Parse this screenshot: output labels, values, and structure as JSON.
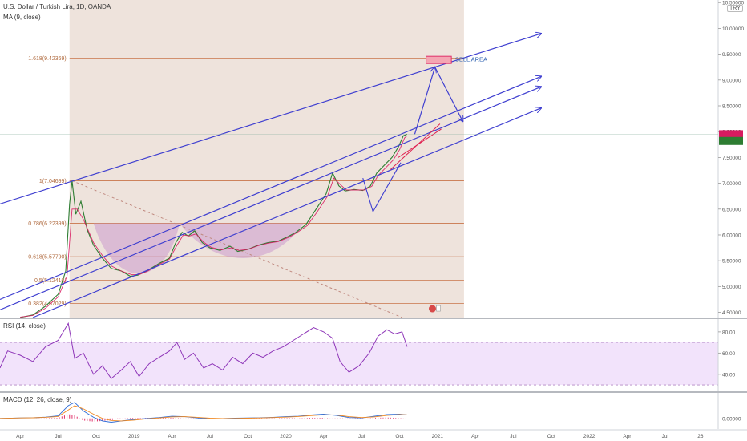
{
  "header": {
    "symbol": "U.S. Dollar / Turkish Lira, 1D, OANDA",
    "ma_label": "MA (9, close)",
    "currency_badge": "TRY"
  },
  "rsi_panel": {
    "label": "RSI (14, close)"
  },
  "macd_panel": {
    "label": "MACD (12, 26, close, 9)"
  },
  "colors": {
    "price_line": "#2e7d32",
    "ma_line": "#d81b60",
    "channel": "#3f3fd0",
    "fib_line": "#c8754a",
    "shaded_bg": "#e8d9d0",
    "rsi_line": "#8e35b8",
    "rsi_band": "#efdcfa",
    "macd_line": "#2b6bd8",
    "signal_line": "#f08a24",
    "histogram": "#e0306a",
    "sell_box": "#f4a6b3"
  },
  "chart_data": [
    {
      "type": "line",
      "title": "U.S. Dollar / Turkish Lira, 1D, OANDA",
      "y_axis_side": "right",
      "ylim": [
        4.4,
        10.55
      ],
      "y_ticks": [
        4.5,
        5.0,
        5.5,
        6.0,
        6.5,
        7.0,
        7.5,
        8.0,
        8.5,
        9.0,
        9.5,
        10.0,
        10.5
      ],
      "y_tick_labels": [
        "4.50000",
        "5.00000",
        "5.50000",
        "6.00000",
        "6.50000",
        "7.00000",
        "7.50000",
        "8.00000",
        "8.50000",
        "9.00000",
        "9.50000",
        "10.00000",
        "10.50000"
      ],
      "x_tick_labels": [
        "Apr",
        "Jul",
        "Oct",
        "2019",
        "Apr",
        "Jul",
        "Oct",
        "2020",
        "Apr",
        "Jul",
        "Oct",
        "2021",
        "Apr",
        "Jul",
        "Oct",
        "2022",
        "Apr",
        "Jul",
        "26"
      ],
      "x_ticks_months": [
        0,
        3,
        6,
        9,
        12,
        15,
        18,
        21,
        24,
        27,
        30,
        33,
        36,
        39,
        42,
        45,
        48,
        51,
        53.8
      ],
      "x_range_months": [
        -1.6,
        55.2
      ],
      "x_origin": "Apr 2018",
      "series": [
        {
          "name": "price",
          "points": [
            [
              0,
              4.4
            ],
            [
              1,
              4.45
            ],
            [
              2,
              4.62
            ],
            [
              3,
              4.85
            ],
            [
              3.6,
              5.3
            ],
            [
              3.9,
              6.6
            ],
            [
              4.1,
              7.05
            ],
            [
              4.4,
              6.4
            ],
            [
              4.8,
              6.65
            ],
            [
              5.3,
              6.1
            ],
            [
              5.8,
              5.8
            ],
            [
              6.5,
              5.55
            ],
            [
              7.2,
              5.35
            ],
            [
              8,
              5.3
            ],
            [
              8.7,
              5.2
            ],
            [
              9.3,
              5.22
            ],
            [
              10,
              5.3
            ],
            [
              11,
              5.45
            ],
            [
              11.8,
              5.55
            ],
            [
              12.3,
              5.85
            ],
            [
              12.8,
              6.05
            ],
            [
              13.3,
              5.98
            ],
            [
              13.8,
              6.08
            ],
            [
              14.4,
              5.85
            ],
            [
              15,
              5.75
            ],
            [
              15.8,
              5.7
            ],
            [
              16.6,
              5.78
            ],
            [
              17.2,
              5.68
            ],
            [
              18,
              5.72
            ],
            [
              18.8,
              5.8
            ],
            [
              19.6,
              5.85
            ],
            [
              20.4,
              5.88
            ],
            [
              21.2,
              5.97
            ],
            [
              21.8,
              6.05
            ],
            [
              22.6,
              6.2
            ],
            [
              23.4,
              6.5
            ],
            [
              24.2,
              6.8
            ],
            [
              24.7,
              7.2
            ],
            [
              25.2,
              6.95
            ],
            [
              25.7,
              6.85
            ],
            [
              26.4,
              6.88
            ],
            [
              27.1,
              6.86
            ],
            [
              27.7,
              6.95
            ],
            [
              28.2,
              7.2
            ],
            [
              28.8,
              7.35
            ],
            [
              29.4,
              7.5
            ],
            [
              29.9,
              7.7
            ],
            [
              30.3,
              7.92
            ],
            [
              30.6,
              7.95
            ]
          ]
        },
        {
          "name": "MA (9, close)",
          "points": [
            [
              0,
              4.41
            ],
            [
              1,
              4.44
            ],
            [
              2,
              4.58
            ],
            [
              3,
              4.8
            ],
            [
              3.7,
              5.2
            ],
            [
              4.1,
              6.5
            ],
            [
              4.5,
              6.5
            ],
            [
              5,
              6.3
            ],
            [
              5.8,
              5.85
            ],
            [
              6.5,
              5.6
            ],
            [
              7.2,
              5.4
            ],
            [
              8,
              5.3
            ],
            [
              8.8,
              5.23
            ],
            [
              9.4,
              5.23
            ],
            [
              10.1,
              5.3
            ],
            [
              11,
              5.43
            ],
            [
              11.8,
              5.53
            ],
            [
              12.4,
              5.8
            ],
            [
              12.9,
              6.0
            ],
            [
              13.4,
              5.98
            ],
            [
              13.9,
              6.02
            ],
            [
              14.5,
              5.86
            ],
            [
              15.1,
              5.76
            ],
            [
              15.9,
              5.71
            ],
            [
              16.7,
              5.75
            ],
            [
              17.3,
              5.7
            ],
            [
              18,
              5.72
            ],
            [
              18.8,
              5.79
            ],
            [
              19.6,
              5.84
            ],
            [
              20.4,
              5.87
            ],
            [
              21.2,
              5.95
            ],
            [
              21.8,
              6.03
            ],
            [
              22.7,
              6.18
            ],
            [
              23.5,
              6.45
            ],
            [
              24.3,
              6.75
            ],
            [
              24.8,
              7.1
            ],
            [
              25.3,
              6.98
            ],
            [
              25.8,
              6.87
            ],
            [
              26.5,
              6.87
            ],
            [
              27.2,
              6.87
            ],
            [
              27.8,
              6.94
            ],
            [
              28.3,
              7.15
            ],
            [
              28.9,
              7.3
            ],
            [
              29.5,
              7.45
            ],
            [
              30,
              7.65
            ],
            [
              30.4,
              7.88
            ],
            [
              30.6,
              7.92
            ]
          ]
        }
      ],
      "fib_levels": [
        {
          "label": "1(7.04699)",
          "value": 7.04699
        },
        {
          "label": "0.786(6.22399)",
          "value": 6.22399
        },
        {
          "label": "0.618(5.57790)",
          "value": 5.5779
        },
        {
          "label": "0.5(5.12410)",
          "value": 5.1241
        },
        {
          "label": "0.382(4.67029)",
          "value": 4.67029
        },
        {
          "label": "1.618(9.42369)",
          "value": 9.42369
        }
      ],
      "annotations": [
        {
          "text": "SELL AREA",
          "month": 32.9,
          "value": 9.34
        }
      ],
      "grid": false
    },
    {
      "type": "line",
      "title": "RSI (14, close)",
      "ylim": [
        24,
        92
      ],
      "y_ticks": [
        40,
        60,
        80
      ],
      "y_tick_labels": [
        "40.00",
        "60.00",
        "80.00"
      ],
      "band": [
        30,
        70
      ],
      "series": [
        {
          "name": "RSI",
          "points": [
            [
              -1.6,
              46
            ],
            [
              -1,
              62
            ],
            [
              0,
              58
            ],
            [
              1,
              52
            ],
            [
              2,
              66
            ],
            [
              3,
              72
            ],
            [
              3.8,
              88
            ],
            [
              4.3,
              55
            ],
            [
              5,
              60
            ],
            [
              5.8,
              40
            ],
            [
              6.5,
              48
            ],
            [
              7.2,
              36
            ],
            [
              8,
              44
            ],
            [
              8.7,
              52
            ],
            [
              9.4,
              38
            ],
            [
              10.2,
              50
            ],
            [
              11,
              56
            ],
            [
              11.8,
              62
            ],
            [
              12.4,
              70
            ],
            [
              13,
              54
            ],
            [
              13.7,
              60
            ],
            [
              14.5,
              46
            ],
            [
              15.2,
              50
            ],
            [
              16,
              44
            ],
            [
              16.8,
              56
            ],
            [
              17.6,
              50
            ],
            [
              18.4,
              60
            ],
            [
              19.2,
              56
            ],
            [
              20,
              62
            ],
            [
              20.8,
              66
            ],
            [
              21.6,
              72
            ],
            [
              22.4,
              78
            ],
            [
              23.2,
              84
            ],
            [
              24,
              80
            ],
            [
              24.7,
              74
            ],
            [
              25.3,
              52
            ],
            [
              26,
              42
            ],
            [
              26.8,
              48
            ],
            [
              27.6,
              60
            ],
            [
              28.3,
              76
            ],
            [
              29,
              82
            ],
            [
              29.6,
              78
            ],
            [
              30.2,
              80
            ],
            [
              30.6,
              66
            ]
          ]
        }
      ]
    },
    {
      "type": "line",
      "title": "MACD (12, 26, close, 9)",
      "ylim": [
        -0.5,
        1.2
      ],
      "y_ticks": [
        0
      ],
      "y_tick_labels": [
        "0.00000"
      ],
      "series": [
        {
          "name": "MACD",
          "points": [
            [
              -1.6,
              0
            ],
            [
              0,
              0.02
            ],
            [
              1,
              0.03
            ],
            [
              2,
              0.06
            ],
            [
              3,
              0.12
            ],
            [
              3.8,
              0.6
            ],
            [
              4.3,
              0.75
            ],
            [
              5,
              0.35
            ],
            [
              5.8,
              0.05
            ],
            [
              6.5,
              -0.12
            ],
            [
              7.2,
              -0.18
            ],
            [
              8,
              -0.12
            ],
            [
              9,
              -0.05
            ],
            [
              10,
              0
            ],
            [
              11,
              0.04
            ],
            [
              12,
              0.1
            ],
            [
              13,
              0.08
            ],
            [
              14,
              0.02
            ],
            [
              15,
              -0.02
            ],
            [
              16,
              -0.01
            ],
            [
              17,
              0.01
            ],
            [
              18,
              0.02
            ],
            [
              19,
              0.03
            ],
            [
              20,
              0.05
            ],
            [
              21,
              0.08
            ],
            [
              22,
              0.1
            ],
            [
              23,
              0.16
            ],
            [
              24,
              0.2
            ],
            [
              25,
              0.14
            ],
            [
              26,
              0.04
            ],
            [
              27,
              0.02
            ],
            [
              28,
              0.1
            ],
            [
              29,
              0.18
            ],
            [
              30,
              0.2
            ],
            [
              30.6,
              0.16
            ]
          ]
        },
        {
          "name": "Signal",
          "points": [
            [
              -1.6,
              0
            ],
            [
              0,
              0.02
            ],
            [
              1,
              0.03
            ],
            [
              2,
              0.05
            ],
            [
              3,
              0.09
            ],
            [
              3.8,
              0.4
            ],
            [
              4.3,
              0.6
            ],
            [
              5,
              0.45
            ],
            [
              5.8,
              0.2
            ],
            [
              6.5,
              0
            ],
            [
              7.2,
              -0.1
            ],
            [
              8,
              -0.12
            ],
            [
              9,
              -0.08
            ],
            [
              10,
              -0.02
            ],
            [
              11,
              0.02
            ],
            [
              12,
              0.07
            ],
            [
              13,
              0.08
            ],
            [
              14,
              0.05
            ],
            [
              15,
              0.01
            ],
            [
              16,
              -0.01
            ],
            [
              17,
              0
            ],
            [
              18,
              0.01
            ],
            [
              19,
              0.02
            ],
            [
              20,
              0.04
            ],
            [
              21,
              0.06
            ],
            [
              22,
              0.09
            ],
            [
              23,
              0.13
            ],
            [
              24,
              0.17
            ],
            [
              25,
              0.16
            ],
            [
              26,
              0.08
            ],
            [
              27,
              0.04
            ],
            [
              28,
              0.07
            ],
            [
              29,
              0.14
            ],
            [
              30,
              0.18
            ],
            [
              30.6,
              0.17
            ]
          ]
        }
      ]
    }
  ]
}
